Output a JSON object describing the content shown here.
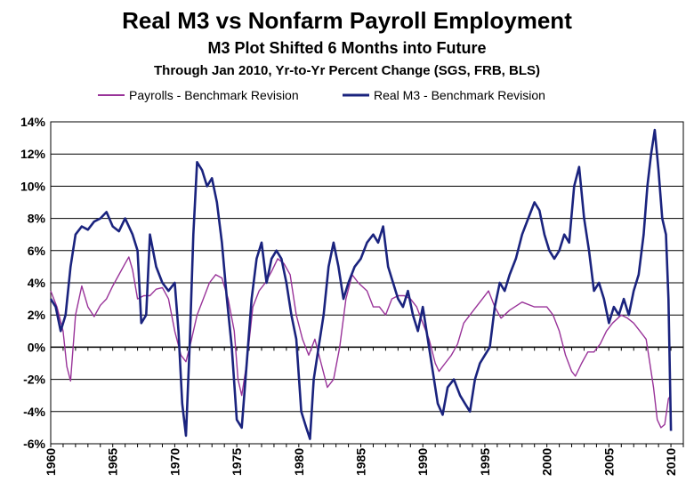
{
  "chart_data": {
    "type": "line",
    "title": "Real M3 vs Nonfarm Payroll Employment",
    "subtitle": "M3 Plot Shifted 6 Months into Future",
    "subtitle2": "Through Jan 2010, Yr-to-Yr  Percent Change (SGS, FRB, BLS)",
    "xlabel": "",
    "ylabel": "",
    "xlim": [
      1960,
      2011
    ],
    "ylim": [
      -6,
      14
    ],
    "x_ticks": [
      "1960",
      "1965",
      "1970",
      "1975",
      "1980",
      "1985",
      "1990",
      "1995",
      "2000",
      "2005",
      "2010"
    ],
    "y_ticks": [
      "-6%",
      "-4%",
      "-2%",
      "0%",
      "2%",
      "4%",
      "6%",
      "8%",
      "10%",
      "12%",
      "14%"
    ],
    "grid": "horizontal",
    "legend": "top",
    "series": [
      {
        "name": "Payrolls - Benchmark Revision",
        "color": "#993399",
        "x": [
          1960,
          1960.5,
          1961,
          1961.3,
          1961.6,
          1962,
          1962.5,
          1963,
          1963.5,
          1964,
          1964.5,
          1965,
          1965.5,
          1966,
          1966.3,
          1966.6,
          1967,
          1967.5,
          1968,
          1968.5,
          1969,
          1969.5,
          1970,
          1970.5,
          1970.9,
          1971.3,
          1971.8,
          1972.3,
          1972.8,
          1973.3,
          1973.8,
          1974.3,
          1974.8,
          1975.1,
          1975.4,
          1975.8,
          1976.3,
          1976.8,
          1977.3,
          1977.8,
          1978.3,
          1978.8,
          1979.3,
          1979.8,
          1980.3,
          1980.8,
          1981.3,
          1981.8,
          1982.3,
          1982.8,
          1983.3,
          1983.8,
          1984.3,
          1984.8,
          1985.5,
          1986,
          1986.5,
          1987,
          1987.5,
          1988,
          1988.5,
          1989,
          1989.5,
          1990,
          1990.5,
          1991,
          1991.3,
          1991.8,
          1992.3,
          1992.8,
          1993.3,
          1993.8,
          1994.3,
          1994.8,
          1995.3,
          1995.8,
          1996.3,
          1997,
          1998,
          1999,
          2000,
          2000.5,
          2001,
          2001.5,
          2002,
          2002.3,
          2002.8,
          2003.3,
          2003.8,
          2004.3,
          2004.8,
          2005.3,
          2006,
          2006.5,
          2007,
          2007.5,
          2008,
          2008.3,
          2008.6,
          2008.9,
          2009.2,
          2009.5,
          2009.8,
          2010
        ],
        "values": [
          3.5,
          2.5,
          1.0,
          -1.2,
          -2.1,
          2.0,
          3.8,
          2.5,
          1.9,
          2.6,
          3.0,
          3.8,
          4.5,
          5.2,
          5.6,
          4.8,
          3.0,
          3.2,
          3.2,
          3.6,
          3.7,
          3.0,
          1.0,
          -0.5,
          -0.9,
          0.3,
          2.0,
          3.0,
          4.0,
          4.5,
          4.3,
          3.0,
          1.0,
          -2.0,
          -3.0,
          -1.0,
          2.5,
          3.5,
          4.0,
          4.7,
          5.5,
          5.2,
          4.5,
          2.0,
          0.5,
          -0.5,
          0.5,
          -1.0,
          -2.5,
          -2.0,
          0.0,
          3.0,
          4.5,
          4.0,
          3.5,
          2.5,
          2.5,
          2.0,
          3.0,
          3.2,
          3.2,
          3.0,
          2.5,
          1.5,
          0.5,
          -1.0,
          -1.5,
          -1.0,
          -0.5,
          0.2,
          1.5,
          2.0,
          2.5,
          3.0,
          3.5,
          2.5,
          1.8,
          2.3,
          2.8,
          2.5,
          2.5,
          2.0,
          1.0,
          -0.5,
          -1.5,
          -1.8,
          -1.0,
          -0.3,
          -0.3,
          0.2,
          1.0,
          1.5,
          2.0,
          1.8,
          1.5,
          1.0,
          0.5,
          -1.0,
          -2.5,
          -4.5,
          -5.0,
          -4.8,
          -3.2,
          -3.0
        ]
      },
      {
        "name": "Real M3 - Benchmark Revision",
        "color": "#1a237e",
        "x": [
          1960,
          1960.4,
          1960.8,
          1961.2,
          1961.6,
          1962,
          1962.5,
          1963,
          1963.5,
          1964,
          1964.5,
          1965,
          1965.5,
          1966,
          1966.3,
          1966.6,
          1967,
          1967.3,
          1967.7,
          1968,
          1968.5,
          1969,
          1969.5,
          1970,
          1970.3,
          1970.6,
          1970.9,
          1971.2,
          1971.5,
          1971.8,
          1972.2,
          1972.6,
          1973,
          1973.4,
          1973.8,
          1974.2,
          1974.6,
          1975,
          1975.4,
          1975.8,
          1976.2,
          1976.6,
          1977,
          1977.4,
          1977.8,
          1978.2,
          1978.6,
          1979,
          1979.4,
          1979.8,
          1980.2,
          1980.6,
          1980.9,
          1981.2,
          1981.6,
          1982,
          1982.4,
          1982.8,
          1983.2,
          1983.6,
          1984,
          1984.5,
          1985,
          1985.5,
          1986,
          1986.4,
          1986.8,
          1987.2,
          1987.6,
          1988,
          1988.4,
          1988.8,
          1989.2,
          1989.6,
          1990,
          1990.4,
          1990.8,
          1991.2,
          1991.6,
          1992,
          1992.5,
          1993,
          1993.4,
          1993.8,
          1994.2,
          1994.6,
          1995,
          1995.4,
          1995.8,
          1996.2,
          1996.6,
          1997,
          1997.5,
          1998,
          1998.5,
          1999,
          1999.4,
          1999.8,
          2000.2,
          2000.6,
          2001,
          2001.4,
          2001.8,
          2002.2,
          2002.6,
          2003,
          2003.4,
          2003.8,
          2004.2,
          2004.6,
          2005,
          2005.4,
          2005.8,
          2006.2,
          2006.6,
          2007,
          2007.4,
          2007.8,
          2008.1,
          2008.4,
          2008.7,
          2009,
          2009.3,
          2009.6,
          2009.8,
          2010
        ],
        "values": [
          3.0,
          2.5,
          1.0,
          2.0,
          5.0,
          7.0,
          7.5,
          7.3,
          7.8,
          8.0,
          8.4,
          7.5,
          7.2,
          8.0,
          7.5,
          7.0,
          6.0,
          1.5,
          2.0,
          7.0,
          5.0,
          4.0,
          3.5,
          4.0,
          1.0,
          -3.5,
          -5.5,
          0.0,
          7.0,
          11.5,
          11.0,
          10.0,
          10.5,
          9.0,
          6.5,
          3.0,
          0.0,
          -4.5,
          -5.0,
          -1.0,
          3.0,
          5.5,
          6.5,
          4.0,
          5.5,
          6.0,
          5.5,
          4.0,
          2.0,
          0.5,
          -4.0,
          -5.0,
          -5.7,
          -2.0,
          0.0,
          2.0,
          5.0,
          6.5,
          5.0,
          3.0,
          4.0,
          5.0,
          5.5,
          6.5,
          7.0,
          6.5,
          7.5,
          5.0,
          4.0,
          3.0,
          2.5,
          3.5,
          2.0,
          1.0,
          2.5,
          0.5,
          -1.5,
          -3.5,
          -4.2,
          -2.5,
          -2.0,
          -3.0,
          -3.5,
          -4.0,
          -2.0,
          -1.0,
          -0.5,
          0.0,
          2.5,
          4.0,
          3.5,
          4.5,
          5.5,
          7.0,
          8.0,
          9.0,
          8.5,
          7.0,
          6.0,
          5.5,
          6.0,
          7.0,
          6.5,
          10.0,
          11.2,
          8.0,
          6.0,
          3.5,
          4.0,
          3.0,
          1.5,
          2.5,
          2.0,
          3.0,
          2.0,
          3.5,
          4.5,
          7.0,
          10.0,
          12.0,
          13.5,
          11.0,
          8.0,
          7.0,
          3.0,
          -5.2
        ]
      }
    ]
  }
}
